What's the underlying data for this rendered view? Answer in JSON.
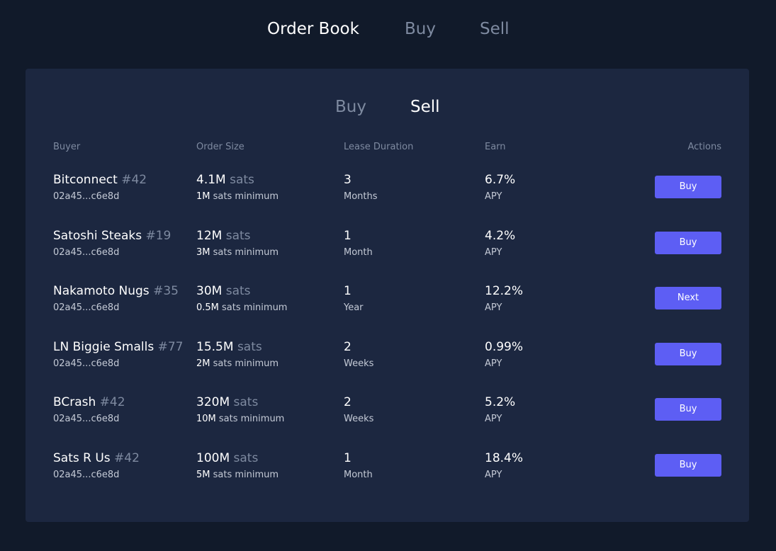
{
  "top_tabs": [
    {
      "label": "Order Book",
      "active": true
    },
    {
      "label": "Buy",
      "active": false
    },
    {
      "label": "Sell",
      "active": false
    }
  ],
  "sub_tabs": [
    {
      "label": "Buy",
      "active": false
    },
    {
      "label": "Sell",
      "active": true
    }
  ],
  "columns": [
    "Buyer",
    "Order Size",
    "Lease Duration",
    "Earn",
    "Actions"
  ],
  "colors": {
    "background": "#111a2a",
    "panel": "#1c2740",
    "accent": "#5d5ef4",
    "muted_text": "#7e8aa0"
  },
  "rows": [
    {
      "name": "Bitconnect",
      "num": "#42",
      "id": "02a45...c6e8d",
      "size": "4.1M",
      "unit": "sats",
      "min_amount": "1M",
      "min_label": "sats minimum",
      "duration": "3",
      "duration_unit": "Months",
      "earn": "6.7%",
      "earn_label": "APY",
      "action": "Buy"
    },
    {
      "name": "Satoshi Steaks",
      "num": "#19",
      "id": "02a45...c6e8d",
      "size": "12M",
      "unit": "sats",
      "min_amount": "3M",
      "min_label": "sats minimum",
      "duration": "1",
      "duration_unit": "Month",
      "earn": "4.2%",
      "earn_label": "APY",
      "action": "Buy"
    },
    {
      "name": "Nakamoto Nugs",
      "num": "#35",
      "id": "02a45...c6e8d",
      "size": "30M",
      "unit": "sats",
      "min_amount": "0.5M",
      "min_label": "sats minimum",
      "duration": "1",
      "duration_unit": "Year",
      "earn": "12.2%",
      "earn_label": "APY",
      "action": "Next"
    },
    {
      "name": "LN Biggie Smalls",
      "num": "#77",
      "id": "02a45...c6e8d",
      "size": "15.5M",
      "unit": "sats",
      "min_amount": "2M",
      "min_label": "sats minimum",
      "duration": "2",
      "duration_unit": "Weeks",
      "earn": "0.99%",
      "earn_label": "APY",
      "action": "Buy"
    },
    {
      "name": "BCrash",
      "num": "#42",
      "id": "02a45...c6e8d",
      "size": "320M",
      "unit": "sats",
      "min_amount": "10M",
      "min_label": "sats minimum",
      "duration": "2",
      "duration_unit": "Weeks",
      "earn": "5.2%",
      "earn_label": "APY",
      "action": "Buy"
    },
    {
      "name": "Sats R Us",
      "num": "#42",
      "id": "02a45...c6e8d",
      "size": "100M",
      "unit": "sats",
      "min_amount": "5M",
      "min_label": "sats minimum",
      "duration": "1",
      "duration_unit": "Month",
      "earn": "18.4%",
      "earn_label": "APY",
      "action": "Buy"
    }
  ]
}
